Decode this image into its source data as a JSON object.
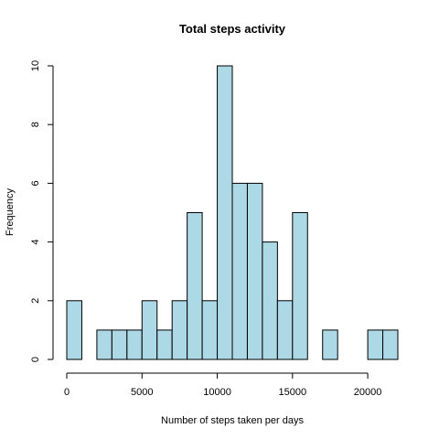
{
  "chart_data": {
    "type": "bar",
    "subtype": "histogram",
    "title": "Total steps activity",
    "xlabel": "Number of steps taken per days",
    "ylabel": "Frequency",
    "bar_color": "#add8e6",
    "border_color": "#000000",
    "bin_width": 1000,
    "bins": [
      {
        "x0": 0,
        "x1": 1000,
        "count": 2
      },
      {
        "x0": 1000,
        "x1": 2000,
        "count": 0
      },
      {
        "x0": 2000,
        "x1": 3000,
        "count": 1
      },
      {
        "x0": 3000,
        "x1": 4000,
        "count": 1
      },
      {
        "x0": 4000,
        "x1": 5000,
        "count": 1
      },
      {
        "x0": 5000,
        "x1": 6000,
        "count": 2
      },
      {
        "x0": 6000,
        "x1": 7000,
        "count": 1
      },
      {
        "x0": 7000,
        "x1": 8000,
        "count": 2
      },
      {
        "x0": 8000,
        "x1": 9000,
        "count": 5
      },
      {
        "x0": 9000,
        "x1": 10000,
        "count": 2
      },
      {
        "x0": 10000,
        "x1": 11000,
        "count": 10
      },
      {
        "x0": 11000,
        "x1": 12000,
        "count": 6
      },
      {
        "x0": 12000,
        "x1": 13000,
        "count": 6
      },
      {
        "x0": 13000,
        "x1": 14000,
        "count": 4
      },
      {
        "x0": 14000,
        "x1": 15000,
        "count": 2
      },
      {
        "x0": 15000,
        "x1": 16000,
        "count": 5
      },
      {
        "x0": 16000,
        "x1": 17000,
        "count": 0
      },
      {
        "x0": 17000,
        "x1": 18000,
        "count": 1
      },
      {
        "x0": 18000,
        "x1": 19000,
        "count": 0
      },
      {
        "x0": 19000,
        "x1": 20000,
        "count": 0
      },
      {
        "x0": 20000,
        "x1": 21000,
        "count": 1
      },
      {
        "x0": 21000,
        "x1": 22000,
        "count": 1
      }
    ],
    "xlim": [
      0,
      22000
    ],
    "ylim": [
      0,
      10
    ],
    "x_ticks": [
      0,
      5000,
      10000,
      15000,
      20000
    ],
    "x_tick_labels": [
      "0",
      "5000",
      "10000",
      "15000",
      "20000"
    ],
    "y_ticks": [
      0,
      2,
      4,
      6,
      8,
      10
    ],
    "y_tick_labels": [
      "0",
      "2",
      "4",
      "6",
      "8",
      "10"
    ],
    "grid": false,
    "legend": "none"
  }
}
